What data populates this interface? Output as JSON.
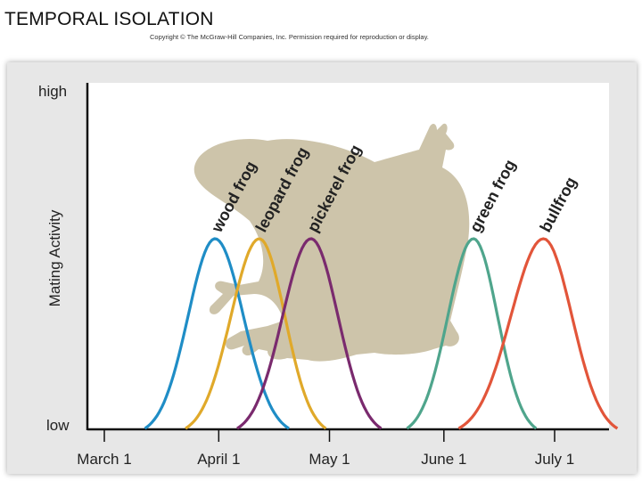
{
  "header": {
    "title": "TEMPORAL ISOLATION",
    "copyright": "Copyright © The McGraw-Hill Companies, Inc. Permission required for reproduction or display."
  },
  "chart_data": {
    "type": "line",
    "ylabel": "Mating Activity",
    "y_tick_labels": {
      "high": "high",
      "low": "low"
    },
    "x_tick_labels": [
      "March 1",
      "April 1",
      "May 1",
      "June 1",
      "July 1"
    ],
    "x_tick_days": [
      0,
      31,
      61,
      92,
      122
    ],
    "xlim": [
      0,
      140
    ],
    "ylim": [
      0,
      1
    ],
    "background_image": "frog-silhouette",
    "series": [
      {
        "name": "wood frog",
        "color": "#1f8dc6",
        "peak_day": 30,
        "start_day": 11,
        "end_day": 50
      },
      {
        "name": "leopard frog",
        "color": "#e0a92a",
        "peak_day": 42,
        "start_day": 22,
        "end_day": 60
      },
      {
        "name": "pickerel frog",
        "color": "#7a2a6e",
        "peak_day": 56,
        "start_day": 36,
        "end_day": 75
      },
      {
        "name": "green frog",
        "color": "#4fa58c",
        "peak_day": 100,
        "start_day": 82,
        "end_day": 117
      },
      {
        "name": "bullfrog",
        "color": "#e2553a",
        "peak_day": 119,
        "start_day": 96,
        "end_day": 139
      }
    ]
  }
}
